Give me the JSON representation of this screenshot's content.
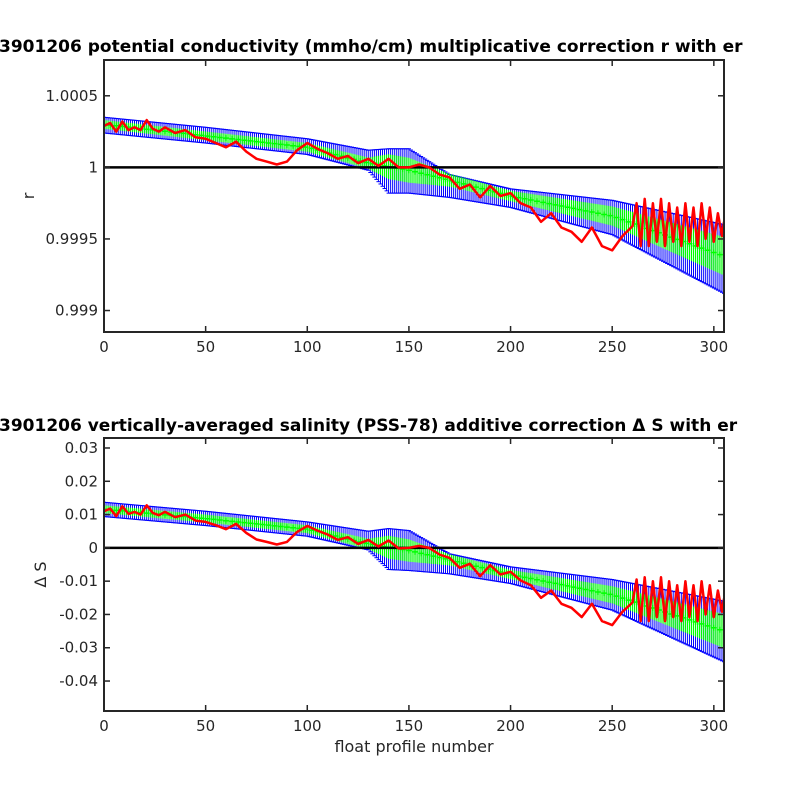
{
  "chart_data": [
    {
      "type": "line",
      "title": "3901206 potential conductivity (mmho/cm) multiplicative correction r with er",
      "xlabel": "",
      "ylabel": "r",
      "xlim": [
        0,
        305
      ],
      "ylim": [
        0.99885,
        1.00075
      ],
      "x_ticks": [
        0,
        50,
        100,
        150,
        200,
        250,
        300
      ],
      "x_tick_labels": [
        "0",
        "50",
        "100",
        "150",
        "200",
        "250",
        "300"
      ],
      "y_ticks": [
        0.999,
        0.9995,
        1,
        1.0005
      ],
      "y_tick_labels": [
        "0.999",
        "0.9995",
        "1",
        "1.0005"
      ],
      "reference_line": 1,
      "grid": false,
      "series": [
        {
          "role": "fit-error-envelope",
          "color": "#0000ff",
          "x": [
            0,
            50,
            100,
            130,
            140,
            150,
            170,
            200,
            250,
            305
          ],
          "lower": [
            1.00024,
            1.00017,
            1.00009,
            0.99998,
            0.99982,
            0.99982,
            0.99979,
            0.99972,
            0.99953,
            0.99912
          ],
          "upper": [
            1.00035,
            1.00028,
            1.0002,
            1.00012,
            1.00013,
            1.00013,
            0.99995,
            0.99985,
            0.99977,
            0.9996
          ]
        },
        {
          "role": "fit",
          "color": "#00ff00",
          "x": [
            0,
            50,
            100,
            130,
            150,
            170,
            200,
            250,
            305
          ],
          "y": [
            1.0003,
            1.00022,
            1.00014,
            1.00003,
            0.99998,
            0.99991,
            0.9998,
            0.99966,
            0.99938
          ]
        },
        {
          "role": "profile-estimate",
          "color": "#ff0000",
          "x": [
            0,
            3,
            6,
            9,
            12,
            15,
            18,
            21,
            24,
            27,
            30,
            35,
            40,
            45,
            50,
            55,
            60,
            65,
            70,
            75,
            80,
            85,
            90,
            95,
            100,
            105,
            110,
            115,
            120,
            125,
            130,
            135,
            140,
            145,
            150,
            155,
            160,
            165,
            170,
            175,
            180,
            185,
            190,
            195,
            200,
            205,
            210,
            215,
            220,
            225,
            230,
            235,
            240,
            245,
            250,
            255,
            260,
            262,
            264,
            266,
            268,
            270,
            272,
            274,
            276,
            278,
            280,
            282,
            284,
            286,
            288,
            290,
            292,
            294,
            296,
            298,
            300,
            302,
            304,
            305
          ],
          "y": [
            1.00029,
            1.00031,
            1.00025,
            1.00032,
            1.00026,
            1.00028,
            1.00026,
            1.00033,
            1.00027,
            1.00025,
            1.00028,
            1.00024,
            1.00026,
            1.00021,
            1.0002,
            1.00017,
            1.00014,
            1.00018,
            1.00011,
            1.00006,
            1.00004,
            1.00002,
            1.00004,
            1.00012,
            1.00017,
            1.00013,
            1.0001,
            1.00006,
            1.00008,
            1.00003,
            1.00006,
            1.00001,
            1.00006,
            1.0,
            1.0,
            1.00002,
            1.0,
            0.99995,
            0.99993,
            0.99985,
            0.99988,
            0.99979,
            0.99987,
            0.9998,
            0.99982,
            0.99975,
            0.99972,
            0.99962,
            0.99968,
            0.99958,
            0.99955,
            0.99948,
            0.99958,
            0.99945,
            0.99942,
            0.99952,
            0.99959,
            0.99975,
            0.99945,
            0.99978,
            0.99945,
            0.99975,
            0.99948,
            0.99978,
            0.99945,
            0.99975,
            0.99948,
            0.99972,
            0.99945,
            0.99975,
            0.99948,
            0.99972,
            0.99945,
            0.99975,
            0.9995,
            0.99972,
            0.99948,
            0.99968,
            0.99952,
            0.99962
          ]
        }
      ]
    },
    {
      "type": "line",
      "title": "3901206 vertically-averaged salinity (PSS-78) additive correction Δ S with er",
      "xlabel": "float profile number",
      "ylabel": "Δ S",
      "xlim": [
        0,
        305
      ],
      "ylim": [
        -0.049,
        0.033
      ],
      "x_ticks": [
        0,
        50,
        100,
        150,
        200,
        250,
        300
      ],
      "x_tick_labels": [
        "0",
        "50",
        "100",
        "150",
        "200",
        "250",
        "300"
      ],
      "y_ticks": [
        -0.04,
        -0.03,
        -0.02,
        -0.01,
        0,
        0.01,
        0.02,
        0.03
      ],
      "y_tick_labels": [
        "-0.04",
        "-0.03",
        "-0.02",
        "-0.01",
        "0",
        "0.01",
        "0.02",
        "0.03"
      ],
      "reference_line": 0,
      "grid": false,
      "series": [
        {
          "role": "fit-error-envelope",
          "color": "#0000ff",
          "x": [
            0,
            50,
            100,
            130,
            140,
            150,
            170,
            200,
            250,
            305
          ],
          "lower": [
            0.0094,
            0.0067,
            0.0035,
            -0.0006,
            -0.0065,
            -0.0068,
            -0.0078,
            -0.0107,
            -0.0187,
            -0.0342
          ],
          "upper": [
            0.0137,
            0.011,
            0.0078,
            0.005,
            0.0058,
            0.0052,
            -0.0018,
            -0.0057,
            -0.0095,
            -0.016
          ]
        },
        {
          "role": "fit",
          "color": "#00ff00",
          "x": [
            0,
            50,
            100,
            130,
            150,
            170,
            200,
            250,
            305
          ],
          "y": [
            0.0116,
            0.0088,
            0.0056,
            0.0012,
            -0.0008,
            -0.0036,
            -0.008,
            -0.0141,
            -0.025
          ]
        },
        {
          "role": "profile-estimate",
          "color": "#ff0000",
          "x": [
            0,
            3,
            6,
            9,
            12,
            15,
            18,
            21,
            24,
            27,
            30,
            35,
            40,
            45,
            50,
            55,
            60,
            65,
            70,
            75,
            80,
            85,
            90,
            95,
            100,
            105,
            110,
            115,
            120,
            125,
            130,
            135,
            140,
            145,
            150,
            155,
            160,
            165,
            170,
            175,
            180,
            185,
            190,
            195,
            200,
            205,
            210,
            215,
            220,
            225,
            230,
            235,
            240,
            245,
            250,
            255,
            260,
            262,
            264,
            266,
            268,
            270,
            272,
            274,
            276,
            278,
            280,
            282,
            284,
            286,
            288,
            290,
            292,
            294,
            296,
            298,
            300,
            302,
            304,
            305
          ],
          "y": [
            0.011,
            0.0118,
            0.0095,
            0.0125,
            0.0102,
            0.0108,
            0.01,
            0.0128,
            0.0105,
            0.0098,
            0.0108,
            0.0092,
            0.01,
            0.0082,
            0.0078,
            0.0068,
            0.0056,
            0.0072,
            0.0045,
            0.0025,
            0.0018,
            0.001,
            0.0018,
            0.0048,
            0.0066,
            0.0052,
            0.004,
            0.0024,
            0.0032,
            0.0012,
            0.0024,
            0.0004,
            0.0022,
            -0.0002,
            0.0,
            0.0006,
            0.0,
            -0.002,
            -0.003,
            -0.006,
            -0.0048,
            -0.0085,
            -0.0052,
            -0.008,
            -0.0072,
            -0.0098,
            -0.0112,
            -0.015,
            -0.0128,
            -0.0168,
            -0.018,
            -0.0208,
            -0.0168,
            -0.022,
            -0.0232,
            -0.0192,
            -0.0164,
            -0.0095,
            -0.022,
            -0.0088,
            -0.022,
            -0.01,
            -0.0208,
            -0.0088,
            -0.022,
            -0.01,
            -0.0208,
            -0.0112,
            -0.022,
            -0.01,
            -0.0208,
            -0.0112,
            -0.022,
            -0.01,
            -0.02,
            -0.0112,
            -0.0208,
            -0.0128,
            -0.0192,
            -0.0152
          ]
        }
      ]
    }
  ]
}
